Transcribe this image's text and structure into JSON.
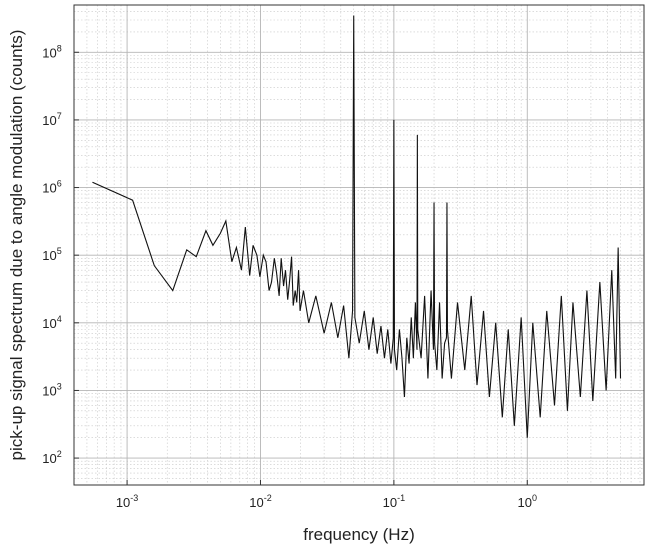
{
  "chart_data": {
    "type": "line",
    "title": "",
    "xlabel": "frequency (Hz)",
    "ylabel": "pick-up signal spectrum due to angle modulation (counts)",
    "xscale": "log",
    "yscale": "log",
    "xlim": [
      0.0004,
      7.5
    ],
    "ylim": [
      40,
      500000000
    ],
    "grid": true,
    "minor_grid": true,
    "line_color": "#111111",
    "x_ticks": [
      {
        "base": "10",
        "exp": "-3",
        "value": 0.001
      },
      {
        "base": "10",
        "exp": "-2",
        "value": 0.01
      },
      {
        "base": "10",
        "exp": "-1",
        "value": 0.1
      },
      {
        "base": "10",
        "exp": "0",
        "value": 1
      }
    ],
    "y_ticks": [
      {
        "base": "10",
        "exp": "2",
        "value": 100
      },
      {
        "base": "10",
        "exp": "3",
        "value": 1000
      },
      {
        "base": "10",
        "exp": "4",
        "value": 10000
      },
      {
        "base": "10",
        "exp": "5",
        "value": 100000
      },
      {
        "base": "10",
        "exp": "6",
        "value": 1000000
      },
      {
        "base": "10",
        "exp": "7",
        "value": 10000000
      },
      {
        "base": "10",
        "exp": "8",
        "value": 100000000
      }
    ],
    "series": [
      {
        "x": [
          0.00055,
          0.0011,
          0.0016,
          0.0022,
          0.0028,
          0.0033,
          0.0039,
          0.0044,
          0.005,
          0.0055,
          0.0061,
          0.0066,
          0.0072,
          0.0077,
          0.0083,
          0.0088,
          0.0094,
          0.0099,
          0.0105,
          0.011,
          0.0116,
          0.0121,
          0.0127,
          0.0132,
          0.0138,
          0.0143,
          0.0149,
          0.0154,
          0.016,
          0.0165,
          0.0171,
          0.0176,
          0.0182,
          0.0187,
          0.0193,
          0.0198,
          0.021,
          0.023,
          0.026,
          0.03,
          0.034,
          0.038,
          0.042,
          0.046,
          0.049,
          0.05,
          0.051,
          0.055,
          0.06,
          0.065,
          0.07,
          0.075,
          0.08,
          0.085,
          0.09,
          0.095,
          0.099,
          0.1,
          0.101,
          0.105,
          0.11,
          0.115,
          0.12,
          0.125,
          0.13,
          0.135,
          0.14,
          0.145,
          0.149,
          0.15,
          0.151,
          0.16,
          0.17,
          0.18,
          0.19,
          0.198,
          0.2,
          0.202,
          0.21,
          0.22,
          0.23,
          0.24,
          0.248,
          0.25,
          0.252,
          0.27,
          0.3,
          0.34,
          0.38,
          0.42,
          0.47,
          0.52,
          0.58,
          0.65,
          0.72,
          0.8,
          0.9,
          1.0,
          1.1,
          1.25,
          1.4,
          1.6,
          1.8,
          2.0,
          2.2,
          2.5,
          2.8,
          3.1,
          3.5,
          3.9,
          4.3,
          4.6,
          4.8,
          5.0
        ],
        "y": [
          1200000,
          650000,
          70000,
          30000,
          120000,
          95000,
          230000,
          140000,
          210000,
          320000,
          80000,
          130000,
          60000,
          260000,
          50000,
          140000,
          100000,
          48000,
          100000,
          80000,
          30000,
          40000,
          90000,
          55000,
          25000,
          90000,
          35000,
          60000,
          22000,
          40000,
          95000,
          18000,
          30000,
          20000,
          60000,
          15000,
          30000,
          10000,
          25000,
          7000,
          20000,
          6000,
          18000,
          3000,
          15000,
          350000000,
          12000,
          5000,
          15000,
          4000,
          12000,
          3500,
          9000,
          3000,
          8000,
          2500,
          6000,
          10000000,
          4000,
          2000,
          8000,
          3000,
          800,
          6000,
          2500,
          12000,
          3000,
          20000,
          4000,
          6000000,
          8000,
          3000,
          25000,
          1500,
          30000,
          4000,
          600000,
          5000,
          2000,
          20000,
          1500,
          5000,
          6000,
          600000,
          8000,
          1500,
          20000,
          2000,
          25000,
          1200,
          15000,
          800,
          10000,
          400,
          8000,
          300,
          12000,
          200,
          10000,
          400,
          15000,
          600,
          25000,
          500,
          20000,
          800,
          30000,
          700,
          40000,
          1000,
          60000,
          1500,
          130000,
          1500
        ]
      }
    ]
  }
}
